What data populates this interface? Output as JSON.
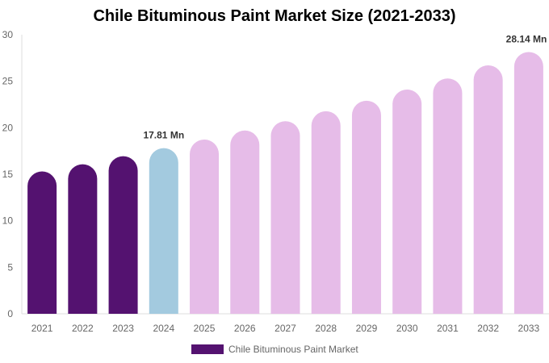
{
  "chart_data": {
    "type": "bar",
    "title": "Chile Bituminous Paint Market Size (2021-2033)",
    "categories": [
      "2021",
      "2022",
      "2023",
      "2024",
      "2025",
      "2026",
      "2027",
      "2028",
      "2029",
      "2030",
      "2031",
      "2032",
      "2033"
    ],
    "series": [
      {
        "name": "Chile Bituminous Paint Market",
        "values": [
          15.3,
          16.07,
          16.94,
          17.81,
          18.73,
          19.7,
          20.7,
          21.77,
          22.9,
          24.1,
          25.3,
          26.7,
          28.14
        ]
      }
    ],
    "data_labels": [
      {
        "category": "2024",
        "text": "17.81 Mn"
      },
      {
        "category": "2033",
        "text": "28.14 Mn"
      }
    ],
    "bar_colors": {
      "historical": "#541270",
      "current": "#A3CADF",
      "forecast": "#E6BCE8"
    },
    "ylim": [
      0,
      30
    ],
    "yticks": [
      0,
      5,
      10,
      15,
      20,
      25,
      30
    ],
    "xlabel": "",
    "ylabel": "",
    "grid": false,
    "legend": "bottom"
  }
}
